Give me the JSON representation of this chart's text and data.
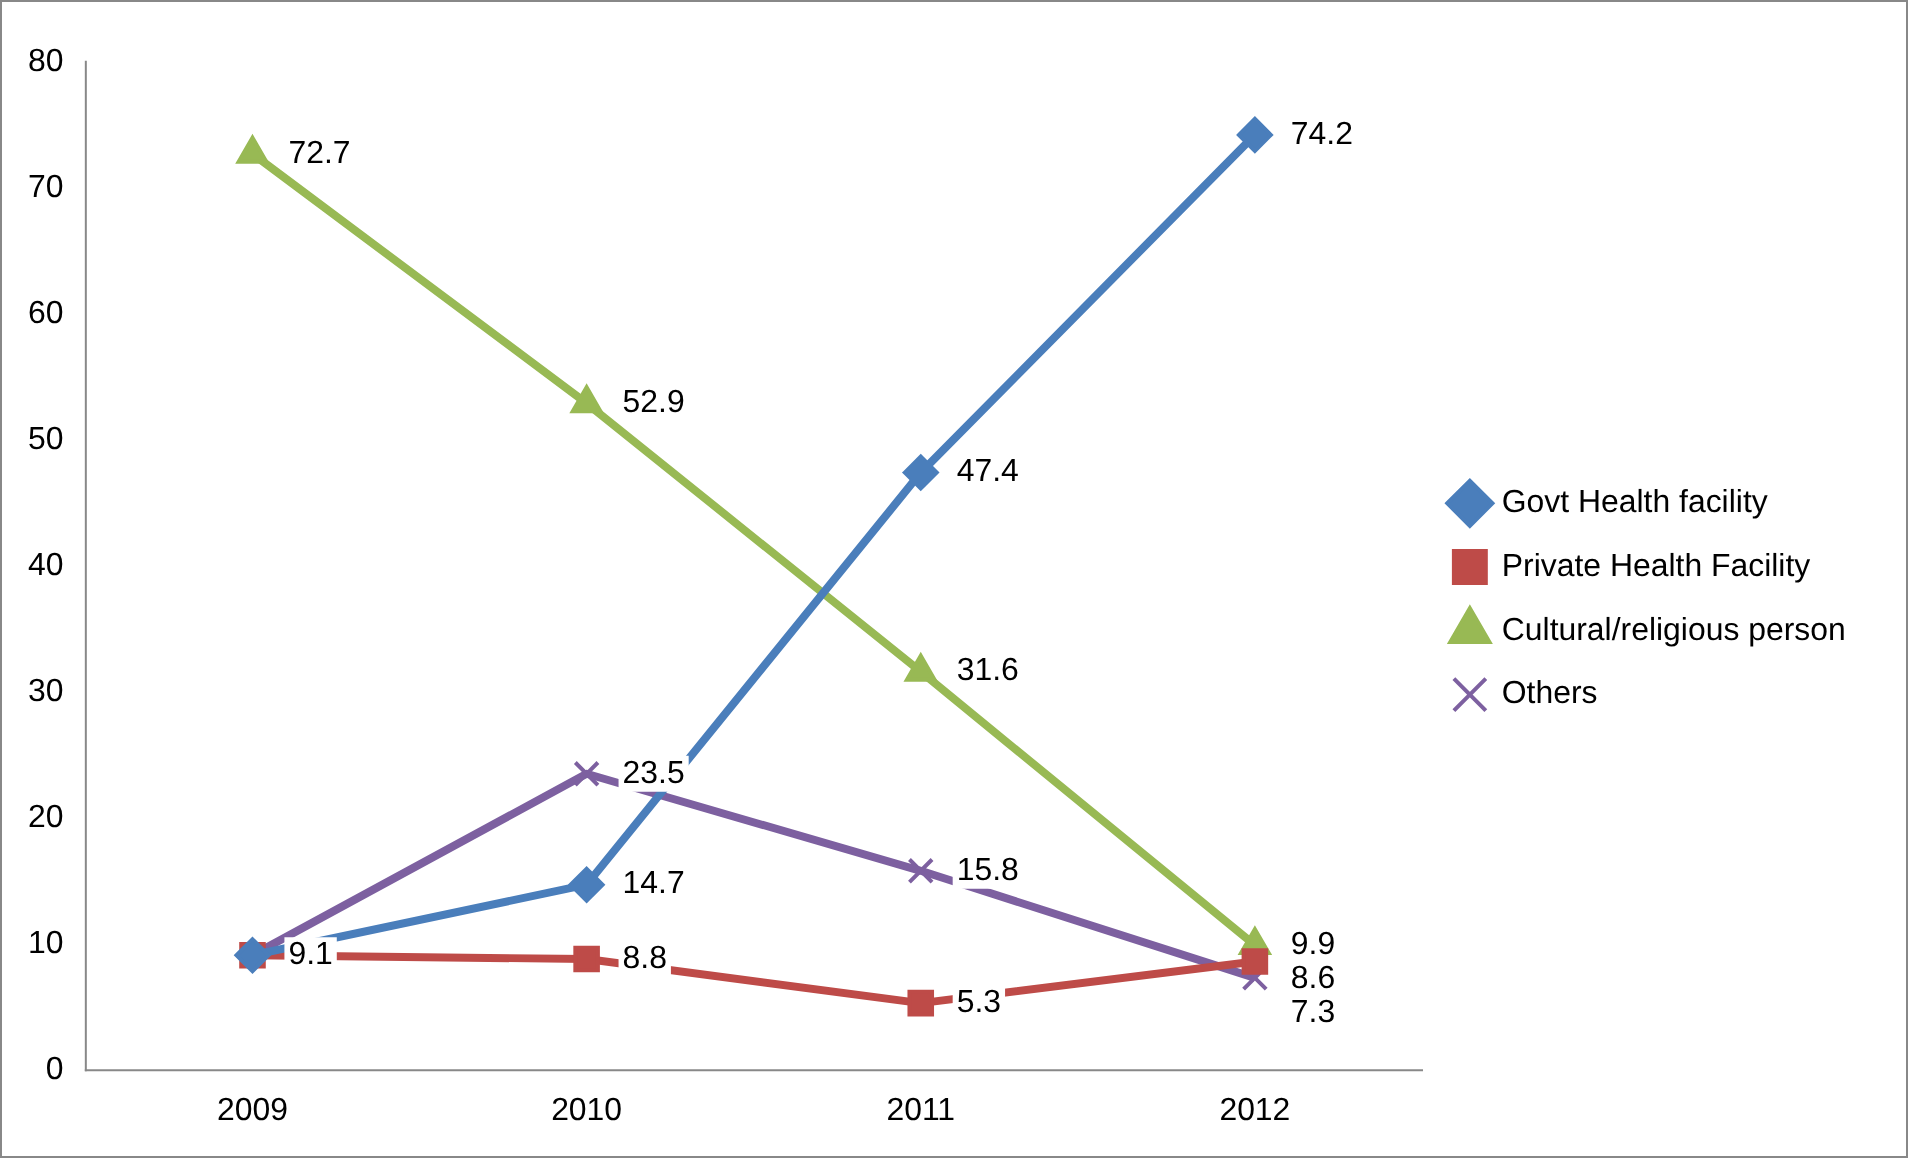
{
  "chart_data": {
    "type": "line",
    "categories": [
      "2009",
      "2010",
      "2011",
      "2012"
    ],
    "series": [
      {
        "name": "Govt Health facility",
        "color": "#4a7ebb",
        "marker": "diamond",
        "values": [
          9.1,
          14.7,
          47.4,
          74.2
        ],
        "value_labels": [
          null,
          "14.7",
          "47.4",
          "74.2"
        ]
      },
      {
        "name": "Private Health Facility",
        "color": "#be4b48",
        "marker": "square",
        "values": [
          9.1,
          8.8,
          5.3,
          8.6
        ],
        "value_labels": [
          "9.1",
          "8.8",
          "5.3",
          "8.6"
        ]
      },
      {
        "name": "Cultural/religious person",
        "color": "#98b954",
        "marker": "triangle",
        "values": [
          72.7,
          52.9,
          31.6,
          9.9
        ],
        "value_labels": [
          "72.7",
          "52.9",
          "31.6",
          "9.9"
        ]
      },
      {
        "name": "Others",
        "color": "#7d60a0",
        "marker": "cross",
        "values": [
          9.1,
          23.5,
          15.8,
          7.3
        ],
        "value_labels": [
          null,
          "23.5",
          "15.8",
          "7.3"
        ]
      }
    ],
    "ylim": [
      0,
      80
    ],
    "yticks": [
      0,
      10,
      20,
      30,
      40,
      50,
      60,
      70,
      80
    ],
    "grid": false,
    "legend": "right",
    "line_style": "solid"
  }
}
